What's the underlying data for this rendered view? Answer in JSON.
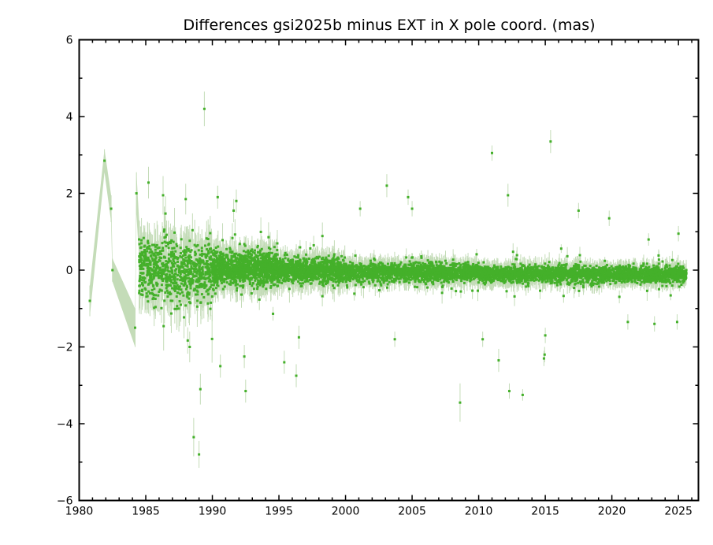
{
  "chart_data": {
    "type": "scatter",
    "title": "Differences gsi2025b minus EXT in X pole coord. (mas)",
    "xlabel": "",
    "ylabel": "",
    "xlim": [
      1980,
      2026.5
    ],
    "ylim": [
      -6,
      6
    ],
    "x_ticks": [
      "1980",
      "1985",
      "1990",
      "1995",
      "2000",
      "2005",
      "2010",
      "2015",
      "2020",
      "2025"
    ],
    "x_tick_values": [
      1980,
      1985,
      1990,
      1995,
      2000,
      2005,
      2010,
      2015,
      2020,
      2025
    ],
    "y_ticks": [
      "6",
      "4",
      "2",
      "0",
      "−2",
      "−4",
      "−6"
    ],
    "y_tick_values": [
      6,
      4,
      2,
      0,
      -2,
      -4,
      -6
    ],
    "grid": false,
    "colors": {
      "point": "#44b02a",
      "error_bar": "#c4dcb8"
    },
    "early_points": [
      {
        "x": 1980.8,
        "y": -0.8,
        "err": 0.4
      },
      {
        "x": 1981.9,
        "y": 2.85,
        "err": 0.3
      },
      {
        "x": 1982.4,
        "y": 1.6,
        "err": 0.35
      },
      {
        "x": 1982.5,
        "y": 0.0,
        "err": 0.3
      },
      {
        "x": 1984.2,
        "y": -1.5,
        "err": 0.5
      },
      {
        "x": 1984.3,
        "y": 2.0,
        "err": 0.55
      },
      {
        "x": 1984.5,
        "y": 0.8,
        "err": 0.5
      }
    ],
    "outliers": [
      {
        "x": 1988.3,
        "y": -2.0,
        "err": 0.4
      },
      {
        "x": 1988.6,
        "y": -4.35,
        "err": 0.5
      },
      {
        "x": 1989.0,
        "y": -4.8,
        "err": 0.35
      },
      {
        "x": 1989.1,
        "y": -3.1,
        "err": 0.4
      },
      {
        "x": 1989.4,
        "y": 4.2,
        "err": 0.45
      },
      {
        "x": 1988.0,
        "y": 1.85,
        "err": 0.4
      },
      {
        "x": 1986.3,
        "y": 1.95,
        "err": 0.5
      },
      {
        "x": 1990.4,
        "y": 1.9,
        "err": 0.3
      },
      {
        "x": 1990.6,
        "y": -2.5,
        "err": 0.3
      },
      {
        "x": 1991.6,
        "y": 1.55,
        "err": 0.3
      },
      {
        "x": 1991.8,
        "y": 1.8,
        "err": 0.3
      },
      {
        "x": 1992.4,
        "y": -2.25,
        "err": 0.3
      },
      {
        "x": 1992.5,
        "y": -3.15,
        "err": 0.3
      },
      {
        "x": 1995.4,
        "y": -2.4,
        "err": 0.3
      },
      {
        "x": 1996.3,
        "y": -2.75,
        "err": 0.3
      },
      {
        "x": 1996.5,
        "y": -1.75,
        "err": 0.3
      },
      {
        "x": 2001.1,
        "y": 1.6,
        "err": 0.2
      },
      {
        "x": 2003.1,
        "y": 2.2,
        "err": 0.3
      },
      {
        "x": 2003.7,
        "y": -1.8,
        "err": 0.2
      },
      {
        "x": 2004.7,
        "y": 1.9,
        "err": 0.2
      },
      {
        "x": 2005.0,
        "y": 1.6,
        "err": 0.2
      },
      {
        "x": 2008.6,
        "y": -3.45,
        "err": 0.5
      },
      {
        "x": 2010.3,
        "y": -1.8,
        "err": 0.2
      },
      {
        "x": 2011.0,
        "y": 3.05,
        "err": 0.2
      },
      {
        "x": 2011.5,
        "y": -2.35,
        "err": 0.3
      },
      {
        "x": 2012.2,
        "y": 1.95,
        "err": 0.3
      },
      {
        "x": 2012.3,
        "y": -3.15,
        "err": 0.2
      },
      {
        "x": 2013.3,
        "y": -3.25,
        "err": 0.15
      },
      {
        "x": 2014.9,
        "y": -2.3,
        "err": 0.2
      },
      {
        "x": 2014.95,
        "y": -2.2,
        "err": 0.2
      },
      {
        "x": 2015.0,
        "y": -1.7,
        "err": 0.2
      },
      {
        "x": 2015.4,
        "y": 3.35,
        "err": 0.3
      },
      {
        "x": 2017.5,
        "y": 1.55,
        "err": 0.2
      },
      {
        "x": 2019.8,
        "y": 1.35,
        "err": 0.2
      },
      {
        "x": 2021.2,
        "y": -1.35,
        "err": 0.2
      },
      {
        "x": 2023.2,
        "y": -1.4,
        "err": 0.2
      },
      {
        "x": 2024.9,
        "y": -1.35,
        "err": 0.2
      },
      {
        "x": 2025.0,
        "y": 0.95,
        "err": 0.2
      }
    ],
    "bulk_scatter_model": [
      {
        "from": 1984.5,
        "to": 1990.0,
        "mean": 0.0,
        "std": 0.55,
        "err": 0.45,
        "per_year": 150
      },
      {
        "from": 1990.0,
        "to": 1995.0,
        "mean": 0.05,
        "std": 0.3,
        "err": 0.3,
        "per_year": 250
      },
      {
        "from": 1995.0,
        "to": 2000.0,
        "mean": 0.0,
        "std": 0.22,
        "err": 0.25,
        "per_year": 200
      },
      {
        "from": 2000.0,
        "to": 2010.0,
        "mean": -0.05,
        "std": 0.17,
        "err": 0.2,
        "per_year": 160
      },
      {
        "from": 2010.0,
        "to": 2025.6,
        "mean": -0.1,
        "std": 0.15,
        "err": 0.18,
        "per_year": 160
      }
    ]
  }
}
